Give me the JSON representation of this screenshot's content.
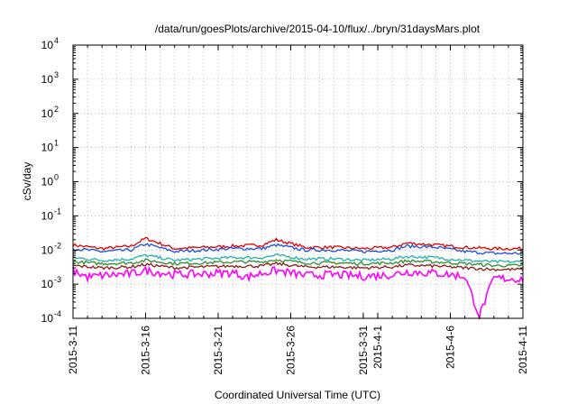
{
  "chart_data": {
    "type": "line",
    "title": "/data/run/goesPlots/archive/2015-04-10/flux/../bryn/31daysMars.plot",
    "xlabel": "Coordinated Universal Time (UTC)",
    "ylabel": "cSv/day",
    "yscale": "log",
    "ylim": [
      0.0001,
      10000
    ],
    "xlim": [
      "2015-03-11",
      "2015-04-11"
    ],
    "grid": true,
    "y_ticks": [
      {
        "value": 0.0001,
        "base": "10",
        "exp": "-4"
      },
      {
        "value": 0.001,
        "base": "10",
        "exp": "-3"
      },
      {
        "value": 0.01,
        "base": "10",
        "exp": "-2"
      },
      {
        "value": 0.1,
        "base": "10",
        "exp": "-1"
      },
      {
        "value": 1,
        "base": "10",
        "exp": "0"
      },
      {
        "value": 10,
        "base": "10",
        "exp": "1"
      },
      {
        "value": 100,
        "base": "10",
        "exp": "2"
      },
      {
        "value": 1000,
        "base": "10",
        "exp": "3"
      },
      {
        "value": 10000,
        "base": "10",
        "exp": "4"
      }
    ],
    "x_ticks": [
      {
        "date": "2015-03-11",
        "label": "2015-3-11"
      },
      {
        "date": "2015-03-16",
        "label": "2015-3-16"
      },
      {
        "date": "2015-03-21",
        "label": "2015-3-21"
      },
      {
        "date": "2015-03-26",
        "label": "2015-3-26"
      },
      {
        "date": "2015-03-31",
        "label": "2015-3-31"
      },
      {
        "date": "2015-04-01",
        "label": "2015-4-1"
      },
      {
        "date": "2015-04-06",
        "label": "2015-4-6"
      },
      {
        "date": "2015-04-11",
        "label": "2015-4-11"
      }
    ],
    "series": [
      {
        "color": "#e00000",
        "x": [
          "2015-03-11",
          "2015-03-13",
          "2015-03-15",
          "2015-03-16",
          "2015-03-18",
          "2015-03-20",
          "2015-03-22",
          "2015-03-24",
          "2015-03-25",
          "2015-03-27",
          "2015-03-29",
          "2015-03-31",
          "2015-04-02",
          "2015-04-03",
          "2015-04-05",
          "2015-04-07",
          "2015-04-09",
          "2015-04-11"
        ],
        "y": [
          0.014,
          0.011,
          0.013,
          0.022,
          0.011,
          0.012,
          0.013,
          0.014,
          0.02,
          0.012,
          0.012,
          0.011,
          0.012,
          0.016,
          0.014,
          0.012,
          0.011,
          0.011
        ]
      },
      {
        "color": "#1a4fe0",
        "x": [
          "2015-03-11",
          "2015-03-13",
          "2015-03-15",
          "2015-03-16",
          "2015-03-18",
          "2015-03-20",
          "2015-03-22",
          "2015-03-24",
          "2015-03-25",
          "2015-03-27",
          "2015-03-29",
          "2015-03-31",
          "2015-04-02",
          "2015-04-03",
          "2015-04-05",
          "2015-04-07",
          "2015-04-09",
          "2015-04-11"
        ],
        "y": [
          0.011,
          0.009,
          0.01,
          0.015,
          0.009,
          0.01,
          0.011,
          0.011,
          0.014,
          0.01,
          0.01,
          0.009,
          0.01,
          0.013,
          0.012,
          0.009,
          0.008,
          0.008
        ]
      },
      {
        "color": "#20b2aa",
        "x": [
          "2015-03-11",
          "2015-03-13",
          "2015-03-15",
          "2015-03-16",
          "2015-03-18",
          "2015-03-20",
          "2015-03-22",
          "2015-03-24",
          "2015-03-25",
          "2015-03-27",
          "2015-03-29",
          "2015-03-31",
          "2015-04-02",
          "2015-04-03",
          "2015-04-05",
          "2015-04-07",
          "2015-04-09",
          "2015-04-11"
        ],
        "y": [
          0.006,
          0.005,
          0.0055,
          0.007,
          0.005,
          0.0055,
          0.006,
          0.006,
          0.007,
          0.0055,
          0.0055,
          0.005,
          0.0055,
          0.0065,
          0.006,
          0.005,
          0.0045,
          0.0045
        ]
      },
      {
        "color": "#2e8b2e",
        "x": [
          "2015-03-11",
          "2015-03-13",
          "2015-03-15",
          "2015-03-16",
          "2015-03-18",
          "2015-03-20",
          "2015-03-22",
          "2015-03-24",
          "2015-03-25",
          "2015-03-27",
          "2015-03-29",
          "2015-03-31",
          "2015-04-02",
          "2015-04-03",
          "2015-04-05",
          "2015-04-07",
          "2015-04-09",
          "2015-04-11"
        ],
        "y": [
          0.0045,
          0.004,
          0.0042,
          0.005,
          0.004,
          0.0042,
          0.0045,
          0.0045,
          0.0052,
          0.0042,
          0.0042,
          0.004,
          0.0042,
          0.0048,
          0.0045,
          0.004,
          0.0035,
          0.0035
        ]
      },
      {
        "color": "#8b1a1a",
        "x": [
          "2015-03-11",
          "2015-03-13",
          "2015-03-15",
          "2015-03-16",
          "2015-03-18",
          "2015-03-20",
          "2015-03-22",
          "2015-03-24",
          "2015-03-25",
          "2015-03-27",
          "2015-03-29",
          "2015-03-31",
          "2015-04-02",
          "2015-04-03",
          "2015-04-05",
          "2015-04-07",
          "2015-04-09",
          "2015-04-11"
        ],
        "y": [
          0.0035,
          0.003,
          0.0032,
          0.0038,
          0.003,
          0.0032,
          0.0034,
          0.0034,
          0.004,
          0.0032,
          0.0032,
          0.003,
          0.0032,
          0.0036,
          0.0034,
          0.003,
          0.0027,
          0.0027
        ]
      },
      {
        "color": "#ff00ff",
        "x": [
          "2015-03-11",
          "2015-03-12",
          "2015-03-13",
          "2015-03-15",
          "2015-03-16",
          "2015-03-18",
          "2015-03-20",
          "2015-03-22",
          "2015-03-23",
          "2015-03-24",
          "2015-03-25",
          "2015-03-27",
          "2015-03-29",
          "2015-03-31",
          "2015-04-02",
          "2015-04-03",
          "2015-04-05",
          "2015-04-07",
          "2015-04-08",
          "2015-04-09",
          "2015-04-11"
        ],
        "y": [
          0.0025,
          0.0016,
          0.0018,
          0.002,
          0.0025,
          0.0019,
          0.002,
          0.0022,
          0.0016,
          0.0021,
          0.0025,
          0.0018,
          0.0019,
          0.0017,
          0.0019,
          0.0023,
          0.0021,
          0.0017,
          0.00012,
          0.0015,
          0.0014
        ]
      }
    ]
  }
}
